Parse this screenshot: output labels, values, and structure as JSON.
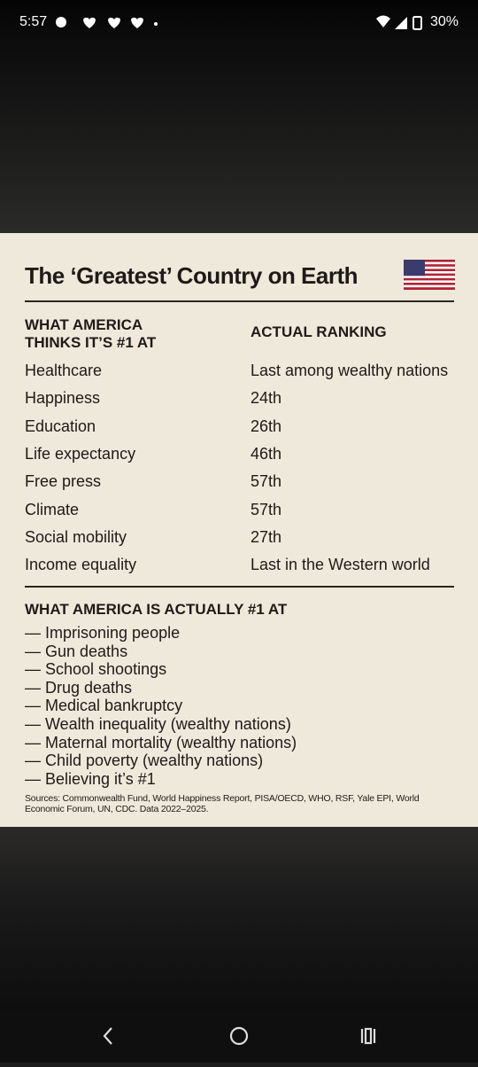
{
  "status_bar": {
    "time": "5:57",
    "battery": "30%"
  },
  "document": {
    "title": "The ‘Greatest’ Country on Earth",
    "columns": [
      "WHAT AMERICA THINKS IT’S #1 AT",
      "ACTUAL RANKING"
    ],
    "rows": [
      [
        "Healthcare",
        "Last among wealthy nations"
      ],
      [
        "Happiness",
        "24th"
      ],
      [
        "Education",
        "26th"
      ],
      [
        "Life expectancy",
        "46th"
      ],
      [
        "Free press",
        "57th"
      ],
      [
        "Climate",
        "57th"
      ],
      [
        "Social mobility",
        "27th"
      ],
      [
        "Income equality",
        "Last in the Western world"
      ]
    ],
    "section_title": "WHAT AMERICA IS ACTUALLY #1 AT",
    "items": [
      "— Imprisoning people",
      "— Gun deaths",
      "— School shootings",
      "— Drug deaths",
      "— Medical bankruptcy",
      "— Wealth inequality (wealthy nations)",
      "— Maternal mortality (wealthy nations)",
      "— Child poverty (wealthy nations)",
      "— Believing it’s #1"
    ],
    "sources": "Sources: Commonwealth Fund, World Happiness Report, PISA/OECD, WHO, RSF, Yale EPI, World Economic Forum, UN, CDC. Data 2022–2025."
  }
}
